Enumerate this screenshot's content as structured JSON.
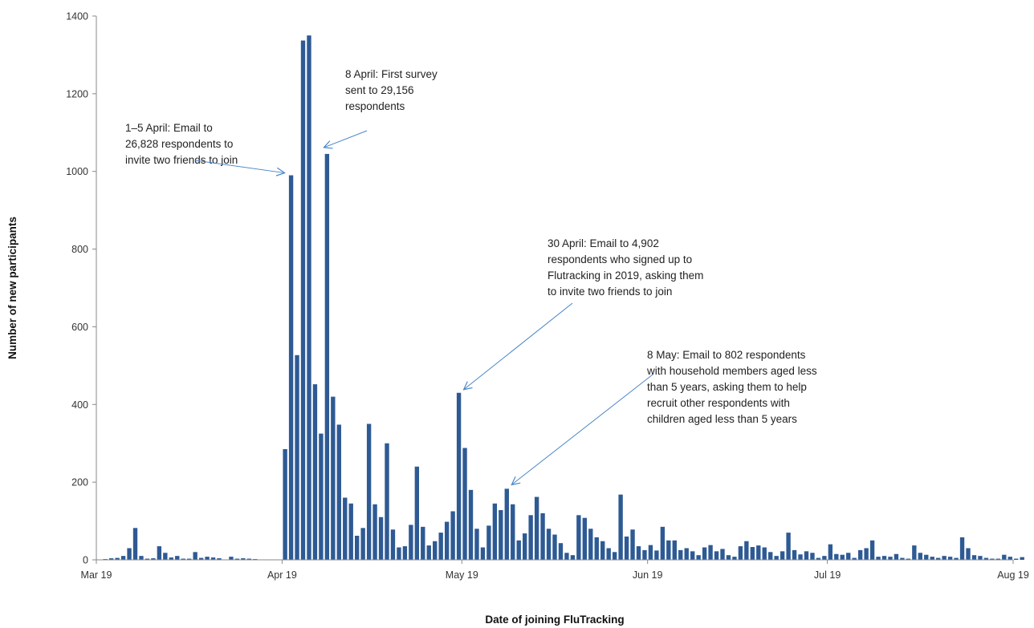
{
  "chart_data": {
    "type": "bar",
    "title": "",
    "xlabel": "Date of joining FluTracking",
    "ylabel": "Number of new participants",
    "ylim": [
      0,
      1400
    ],
    "yticks": [
      0,
      200,
      400,
      600,
      800,
      1000,
      1200,
      1400
    ],
    "x_start_date": "2019-03-01",
    "x_end_date": "2019-08-01",
    "xticks": [
      {
        "label": "Mar 19",
        "date": "2019-03-01"
      },
      {
        "label": "Apr 19",
        "date": "2019-04-01"
      },
      {
        "label": "May 19",
        "date": "2019-05-01"
      },
      {
        "label": "Jun 19",
        "date": "2019-06-01"
      },
      {
        "label": "Jul 19",
        "date": "2019-07-01"
      },
      {
        "label": "Aug 19",
        "date": "2019-08-01"
      }
    ],
    "grid": false,
    "legend": "none",
    "bar_color": "#2e5a94",
    "arrow_color": "#4a86c8",
    "series": [
      {
        "values": [
          1,
          2,
          4,
          5,
          10,
          30,
          82,
          10,
          3,
          4,
          35,
          18,
          6,
          10,
          3,
          3,
          20,
          5,
          8,
          6,
          4,
          0,
          8,
          3,
          4,
          3,
          2,
          0,
          0,
          0,
          0,
          285,
          990,
          527,
          1337,
          1350,
          452,
          325,
          1045,
          420,
          348,
          160,
          145,
          62,
          82,
          350,
          143,
          110,
          300,
          78,
          32,
          35,
          90,
          240,
          85,
          37,
          48,
          70,
          98,
          125,
          430,
          288,
          180,
          80,
          32,
          88,
          145,
          128,
          183,
          143,
          50,
          68,
          115,
          162,
          120,
          80,
          65,
          43,
          18,
          12,
          115,
          108,
          80,
          58,
          48,
          30,
          20,
          168,
          60,
          78,
          35,
          25,
          38,
          24,
          85,
          50,
          50,
          25,
          30,
          22,
          12,
          32,
          38,
          22,
          28,
          12,
          8,
          35,
          48,
          33,
          37,
          32,
          20,
          10,
          22,
          70,
          25,
          14,
          22,
          18,
          5,
          10,
          40,
          15,
          13,
          18,
          5,
          25,
          30,
          50,
          8,
          10,
          8,
          15,
          5,
          3,
          37,
          18,
          13,
          8,
          5,
          10,
          8,
          5,
          58,
          30,
          12,
          10,
          5,
          3,
          3,
          13,
          8,
          3,
          7
        ]
      }
    ],
    "annotations": [
      {
        "lines": [
          "1–5 April: Email to",
          "26,828 respondents to",
          "invite two friends to join"
        ],
        "target_date": "2019-04-02",
        "target_value": 990
      },
      {
        "lines": [
          "8 April: First survey",
          "sent to 29,156",
          "respondents"
        ],
        "target_date": "2019-04-08",
        "target_value": 1045
      },
      {
        "lines": [
          "30 April: Email to 4,902",
          "respondents who signed up to",
          "Flutracking in 2019, asking them",
          "to invite two friends to join"
        ],
        "target_date": "2019-04-30",
        "target_value": 430
      },
      {
        "lines": [
          "8 May: Email to 802 respondents",
          "with household members aged less",
          "than 5 years, asking them to help",
          "recruit other respondents with",
          "children aged less than 5 years"
        ],
        "target_date": "2019-05-08",
        "target_value": 183
      }
    ]
  }
}
